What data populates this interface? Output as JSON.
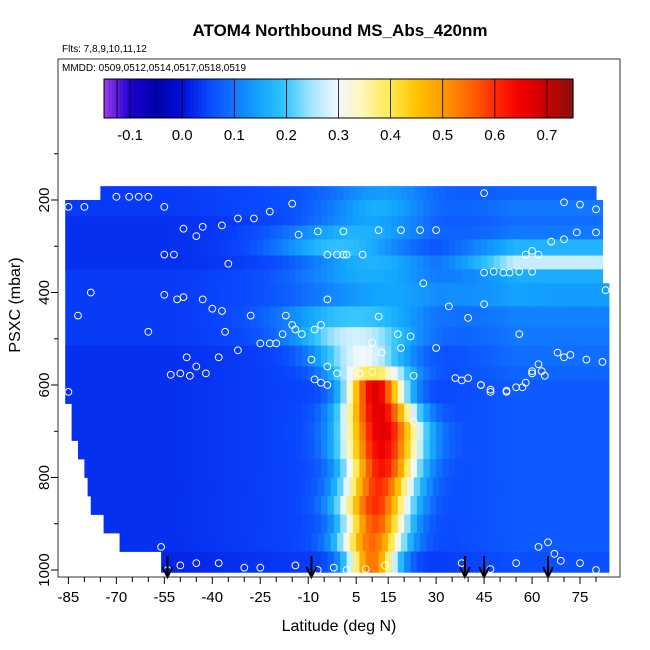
{
  "chart_data": {
    "type": "heatmap",
    "title": "ATOM4 Northbound MS_Abs_420nm",
    "flights_note": "Flts: 7,8,9,10,11,12",
    "dates_note": "MMDD: 0509,0512,0514,0517,0518,0519",
    "xlabel": "Latitude (deg N)",
    "ylabel": "PSXC (mbar)",
    "xlim": [
      -87,
      85
    ],
    "ylim": [
      1020,
      90
    ],
    "x_ticks": [
      -85,
      -70,
      -55,
      -40,
      -25,
      -10,
      5,
      15,
      30,
      45,
      60,
      75
    ],
    "y_ticks": [
      200,
      400,
      600,
      800,
      1000
    ],
    "colorbar": {
      "range": [
        -0.15,
        0.75
      ],
      "ticks": [
        "-0.1",
        "0.0",
        "0.1",
        "0.2",
        "0.3",
        "0.4",
        "0.5",
        "0.6",
        "0.7"
      ],
      "tick_values": [
        -0.1,
        0.0,
        0.1,
        0.2,
        0.3,
        0.4,
        0.5,
        0.6,
        0.7
      ],
      "stops": [
        {
          "v": -0.15,
          "c": "#9a3cf0"
        },
        {
          "v": -0.1,
          "c": "#1e00d0"
        },
        {
          "v": -0.05,
          "c": "#0000a8"
        },
        {
          "v": 0.0,
          "c": "#0010d8"
        },
        {
          "v": 0.05,
          "c": "#0a46ff"
        },
        {
          "v": 0.1,
          "c": "#1178ff"
        },
        {
          "v": 0.15,
          "c": "#13a6ff"
        },
        {
          "v": 0.2,
          "c": "#37c6ff"
        },
        {
          "v": 0.25,
          "c": "#a8e6ff"
        },
        {
          "v": 0.3,
          "c": "#f2f8ff"
        },
        {
          "v": 0.35,
          "c": "#fff6b0"
        },
        {
          "v": 0.4,
          "c": "#ffe84a"
        },
        {
          "v": 0.45,
          "c": "#ffc400"
        },
        {
          "v": 0.5,
          "c": "#ff9a00"
        },
        {
          "v": 0.55,
          "c": "#ff6800"
        },
        {
          "v": 0.6,
          "c": "#ff2a00"
        },
        {
          "v": 0.65,
          "c": "#f00000"
        },
        {
          "v": 0.7,
          "c": "#c80000"
        },
        {
          "v": 0.75,
          "c": "#8a1010"
        }
      ]
    },
    "profile_markers_latitude": [
      -54,
      -9,
      39,
      45,
      65
    ],
    "observation_points": [
      [
        -85,
        215
      ],
      [
        -80,
        215
      ],
      [
        -70,
        193
      ],
      [
        -66,
        193
      ],
      [
        -63,
        193
      ],
      [
        -60,
        193
      ],
      [
        -55,
        215
      ],
      [
        -37,
        255
      ],
      [
        -32,
        240
      ],
      [
        -27,
        240
      ],
      [
        -22,
        225
      ],
      [
        -15,
        208
      ],
      [
        -7,
        268
      ],
      [
        1,
        268
      ],
      [
        12,
        265
      ],
      [
        19,
        265
      ],
      [
        25,
        265
      ],
      [
        30,
        265
      ],
      [
        45,
        185
      ],
      [
        70,
        205
      ],
      [
        75,
        210
      ],
      [
        80,
        220
      ],
      [
        -43,
        258
      ],
      [
        -45,
        278
      ],
      [
        -55,
        318
      ],
      [
        -52,
        318
      ],
      [
        -49,
        262
      ],
      [
        -35,
        338
      ],
      [
        -13,
        275
      ],
      [
        -4,
        318
      ],
      [
        -1,
        318
      ],
      [
        1,
        318
      ],
      [
        2,
        318
      ],
      [
        7,
        318
      ],
      [
        45,
        357
      ],
      [
        48,
        355
      ],
      [
        51,
        357
      ],
      [
        53,
        357
      ],
      [
        56,
        355
      ],
      [
        60,
        355
      ],
      [
        62,
        318
      ],
      [
        58,
        318
      ],
      [
        60,
        310
      ],
      [
        66,
        290
      ],
      [
        70,
        285
      ],
      [
        74,
        270
      ],
      [
        80,
        270
      ],
      [
        83,
        395
      ],
      [
        -82,
        450
      ],
      [
        -78,
        400
      ],
      [
        -55,
        405
      ],
      [
        -36,
        485
      ],
      [
        -28,
        450
      ],
      [
        -17,
        450
      ],
      [
        -15,
        470
      ],
      [
        -14,
        480
      ],
      [
        -4,
        415
      ],
      [
        10,
        508
      ],
      [
        12,
        452
      ],
      [
        18,
        490
      ],
      [
        22,
        495
      ],
      [
        26,
        380
      ],
      [
        34,
        430
      ],
      [
        40,
        455
      ],
      [
        45,
        425
      ],
      [
        56,
        490
      ],
      [
        62,
        555
      ],
      [
        -51,
        415
      ],
      [
        -49,
        410
      ],
      [
        -43,
        415
      ],
      [
        -40,
        435
      ],
      [
        -37,
        440
      ],
      [
        -25,
        510
      ],
      [
        -22,
        510
      ],
      [
        -18,
        490
      ],
      [
        -12,
        490
      ],
      [
        -8,
        480
      ],
      [
        -6,
        470
      ],
      [
        13,
        530
      ],
      [
        19,
        520
      ],
      [
        64,
        580
      ],
      [
        68,
        530
      ],
      [
        70,
        540
      ],
      [
        -60,
        485
      ],
      [
        -48,
        540
      ],
      [
        -45,
        560
      ],
      [
        -42,
        575
      ],
      [
        -38,
        540
      ],
      [
        -32,
        525
      ],
      [
        -20,
        510
      ],
      [
        -9,
        545
      ],
      [
        -4,
        560
      ],
      [
        -1,
        575
      ],
      [
        6,
        575
      ],
      [
        10,
        572
      ],
      [
        30,
        520
      ],
      [
        63,
        570
      ],
      [
        72,
        535
      ],
      [
        77,
        545
      ],
      [
        82,
        550
      ],
      [
        -85,
        615
      ],
      [
        -53,
        578
      ],
      [
        -50,
        575
      ],
      [
        -47,
        580
      ],
      [
        -8,
        588
      ],
      [
        -6,
        595
      ],
      [
        -4,
        600
      ],
      [
        23,
        580
      ],
      [
        36,
        585
      ],
      [
        44,
        600
      ],
      [
        47,
        610
      ],
      [
        52,
        615
      ],
      [
        55,
        605
      ],
      [
        58,
        595
      ],
      [
        60,
        570
      ],
      [
        -82,
        815
      ],
      [
        -56,
        950
      ],
      [
        -38,
        985
      ],
      [
        -30,
        995
      ],
      [
        -25,
        995
      ],
      [
        -14,
        990
      ],
      [
        -7,
        1000
      ],
      [
        -2,
        995
      ],
      [
        -54,
        1000
      ],
      [
        -50,
        990
      ],
      [
        -45,
        985
      ],
      [
        2,
        1000
      ],
      [
        8,
        998
      ],
      [
        14,
        990
      ],
      [
        38,
        590
      ],
      [
        40,
        585
      ],
      [
        44,
        600
      ],
      [
        47,
        615
      ],
      [
        52,
        612
      ],
      [
        57,
        605
      ],
      [
        60,
        575
      ],
      [
        62,
        950
      ],
      [
        65,
        940
      ],
      [
        67,
        965
      ],
      [
        69,
        980
      ],
      [
        75,
        985
      ],
      [
        80,
        1000
      ],
      [
        38,
        985
      ],
      [
        47,
        998
      ],
      [
        55,
        985
      ],
      [
        23,
        680
      ]
    ],
    "layers": [
      {
        "p0": 170,
        "p1": 200,
        "x0": -75,
        "x1": 80,
        "base": 0.06,
        "plume_center": 13,
        "plume_width": 16,
        "plume_amp": 0.08,
        "right_boost": 0.02
      },
      {
        "p0": 200,
        "p1": 235,
        "x0": -86,
        "x1": 82,
        "base": 0.06,
        "plume_center": 12,
        "plume_width": 16,
        "plume_amp": 0.1,
        "right_boost": 0.04
      },
      {
        "p0": 235,
        "p1": 255,
        "x0": -86,
        "x1": 82,
        "base": 0.05,
        "plume_center": 10,
        "plume_width": 18,
        "plume_amp": 0.1,
        "right_boost": 0.04
      },
      {
        "p0": 255,
        "p1": 285,
        "x0": -86,
        "x1": 82,
        "base": 0.05,
        "plume_center": 5,
        "plume_width": 22,
        "plume_amp": 0.12,
        "right_boost": 0.05
      },
      {
        "p0": 285,
        "p1": 320,
        "x0": -86,
        "x1": 82,
        "base": 0.05,
        "plume_center": 0,
        "plume_width": 20,
        "plume_amp": 0.14,
        "right_boost": 0.12
      },
      {
        "p0": 320,
        "p1": 350,
        "x0": -86,
        "x1": 82,
        "base": 0.05,
        "plume_center": 10,
        "plume_width": 20,
        "plume_amp": 0.12,
        "right_boost": 0.22
      },
      {
        "p0": 350,
        "p1": 380,
        "x0": -86,
        "x1": 82,
        "base": 0.06,
        "plume_center": 10,
        "plume_width": 22,
        "plume_amp": 0.1,
        "right_boost": 0.1
      },
      {
        "p0": 380,
        "p1": 430,
        "x0": -86,
        "x1": 84,
        "base": 0.06,
        "plume_center": 15,
        "plume_width": 25,
        "plume_amp": 0.09,
        "right_boost": 0.08
      },
      {
        "p0": 430,
        "p1": 475,
        "x0": -86,
        "x1": 84,
        "base": 0.06,
        "plume_center": 5,
        "plume_width": 22,
        "plume_amp": 0.14,
        "right_boost": 0.05
      },
      {
        "p0": 475,
        "p1": 515,
        "x0": -86,
        "x1": 84,
        "base": 0.06,
        "plume_center": 5,
        "plume_width": 18,
        "plume_amp": 0.22,
        "right_boost": 0.04
      },
      {
        "p0": 515,
        "p1": 560,
        "x0": -86,
        "x1": 84,
        "base": 0.05,
        "plume_center": 7,
        "plume_width": 14,
        "plume_amp": 0.25,
        "right_boost": 0.04
      },
      {
        "p0": 560,
        "p1": 590,
        "x0": -86,
        "x1": 84,
        "base": 0.05,
        "plume_center": 10,
        "plume_width": 12,
        "plume_amp": 0.35,
        "right_boost": 0.03
      },
      {
        "p0": 590,
        "p1": 640,
        "x0": -86,
        "x1": 84,
        "base": 0.05,
        "plume_center": 11,
        "plume_width": 9,
        "plume_amp": 0.62,
        "right_boost": 0.02
      },
      {
        "p0": 640,
        "p1": 680,
        "x0": -84,
        "x1": 84,
        "base": 0.05,
        "plume_center": 12,
        "plume_width": 11,
        "plume_amp": 0.62,
        "right_boost": 0.02
      },
      {
        "p0": 680,
        "p1": 720,
        "x0": -84,
        "x1": 84,
        "base": 0.05,
        "plume_center": 13,
        "plume_width": 12,
        "plume_amp": 0.62,
        "right_boost": 0.02
      },
      {
        "p0": 720,
        "p1": 760,
        "x0": -82,
        "x1": 84,
        "base": 0.05,
        "plume_center": 13,
        "plume_width": 12,
        "plume_amp": 0.6,
        "right_boost": 0.02
      },
      {
        "p0": 760,
        "p1": 800,
        "x0": -80,
        "x1": 84,
        "base": 0.05,
        "plume_center": 13,
        "plume_width": 11,
        "plume_amp": 0.58,
        "right_boost": 0.02
      },
      {
        "p0": 800,
        "p1": 840,
        "x0": -79,
        "x1": 84,
        "base": 0.05,
        "plume_center": 12,
        "plume_width": 11,
        "plume_amp": 0.55,
        "right_boost": 0.02
      },
      {
        "p0": 840,
        "p1": 880,
        "x0": -78,
        "x1": 84,
        "base": 0.05,
        "plume_center": 11,
        "plume_width": 11,
        "plume_amp": 0.55,
        "right_boost": 0.02
      },
      {
        "p0": 880,
        "p1": 920,
        "x0": -74,
        "x1": 84,
        "base": 0.05,
        "plume_center": 11,
        "plume_width": 10,
        "plume_amp": 0.52,
        "right_boost": 0.02
      },
      {
        "p0": 920,
        "p1": 960,
        "x0": -69,
        "x1": 84,
        "base": 0.05,
        "plume_center": 10,
        "plume_width": 10,
        "plume_amp": 0.5,
        "right_boost": 0.02
      },
      {
        "p0": 960,
        "p1": 1005,
        "x0": -56,
        "x1": 84,
        "base": 0.04,
        "plume_center": 10,
        "plume_width": 8,
        "plume_amp": 0.5,
        "right_boost": 0.02
      }
    ]
  }
}
